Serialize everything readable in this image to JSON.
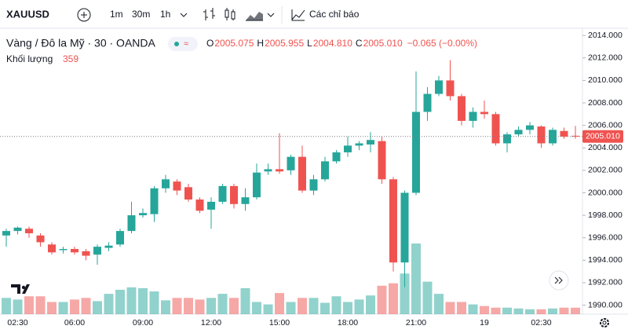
{
  "toolbar": {
    "symbol": "XAUUSD",
    "intervals": [
      "1m",
      "30m",
      "1h"
    ],
    "indicators": "Các chỉ báo"
  },
  "chart_data": {
    "type": "candlestick",
    "title": "Vàng / Đô la Mỹ · 30 · OANDA",
    "legend": [
      {
        "key": "O",
        "value": "2005.075"
      },
      {
        "key": "H",
        "value": "2005.955"
      },
      {
        "key": "L",
        "value": "2004.810"
      },
      {
        "key": "C",
        "value": "2005.010"
      }
    ],
    "change": "−0.065 (−0.00%)",
    "volume_label": "Khối lượng",
    "last_price_label": "2005.010",
    "up_color": "#26a69a",
    "down_color": "#ef5350",
    "categories": [
      null,
      "02:30",
      null,
      null,
      null,
      null,
      "06:00",
      null,
      null,
      null,
      null,
      null,
      "09:00",
      null,
      null,
      null,
      null,
      null,
      "12:00",
      null,
      null,
      null,
      null,
      null,
      "15:00",
      null,
      null,
      null,
      null,
      null,
      "18:00",
      null,
      null,
      null,
      null,
      null,
      "21:00",
      null,
      null,
      null,
      null,
      null,
      "19",
      null,
      null,
      null,
      null,
      "02:30",
      null,
      null,
      null
    ],
    "open": [
      1996.2,
      1996.6,
      1996.8,
      1996.2,
      1995.4,
      1994.9,
      1995.0,
      1994.8,
      1994.5,
      1995.1,
      1995.4,
      1996.6,
      1998.0,
      1998.1,
      2000.4,
      2001.0,
      2000.5,
      1999.4,
      1998.5,
      1999.2,
      2000.6,
      1999.0,
      1999.6,
      2001.9,
      2002.1,
      2002.0,
      2003.2,
      2000.2,
      2001.2,
      2002.8,
      2003.6,
      2004.2,
      2004.3,
      2004.6,
      2001.2,
      1993.8,
      2000.0,
      2007.2,
      2008.8,
      2010.0,
      2008.6,
      2006.4,
      2007.2,
      2007.0,
      2004.4,
      2005.2,
      2005.6,
      2005.9,
      2004.4,
      2005.5,
      2005.075
    ],
    "high": [
      1996.8,
      1997.0,
      1997.0,
      1996.4,
      1995.6,
      1995.2,
      1995.2,
      1995.0,
      1995.4,
      1995.6,
      1996.8,
      1999.2,
      1998.6,
      2000.6,
      2001.6,
      2001.2,
      2000.8,
      1999.6,
      1999.6,
      2000.8,
      2000.8,
      2000.4,
      2002.6,
      2002.6,
      2005.3,
      2003.4,
      2004.2,
      2001.6,
      2003.2,
      2003.8,
      2005.0,
      2004.6,
      2005.4,
      2005.0,
      2001.4,
      2000.2,
      2010.8,
      2009.4,
      2010.4,
      2011.8,
      2008.8,
      2007.6,
      2008.2,
      2007.2,
      2005.4,
      2005.9,
      2006.3,
      2006.0,
      2005.8,
      2005.8,
      2005.955
    ],
    "low": [
      1995.2,
      1996.3,
      1996.0,
      1995.2,
      1994.5,
      1994.6,
      1994.5,
      1994.0,
      1993.6,
      1994.8,
      1995.2,
      1996.4,
      1997.8,
      1997.4,
      2000.0,
      1999.8,
      1999.2,
      1998.2,
      1996.8,
      1999.0,
      1998.6,
      1998.4,
      1999.4,
      2001.6,
      2001.7,
      2001.6,
      2000.0,
      1999.8,
      2001.0,
      2002.6,
      2003.2,
      2003.8,
      2003.6,
      2000.8,
      1993.0,
      1991.6,
      1999.8,
      2006.4,
      2008.6,
      2008.2,
      2006.0,
      2005.8,
      2006.6,
      2004.2,
      2003.6,
      2005.0,
      2005.2,
      2004.0,
      2004.2,
      2004.8,
      2004.81
    ],
    "close": [
      1996.6,
      1996.9,
      1996.4,
      1995.6,
      1994.7,
      1995.0,
      1994.7,
      1994.4,
      1995.2,
      1995.3,
      1996.6,
      1998.0,
      1998.2,
      2000.4,
      2001.2,
      2000.2,
      1999.4,
      1998.4,
      1999.2,
      2000.6,
      1999.0,
      1999.6,
      2001.8,
      2002.1,
      2001.9,
      2003.2,
      2000.2,
      2001.2,
      2002.8,
      2003.6,
      2004.2,
      2004.4,
      2004.7,
      2001.2,
      1993.8,
      2000.0,
      2007.2,
      2008.8,
      2010.0,
      2008.6,
      2006.4,
      2007.2,
      2007.0,
      2004.4,
      2005.2,
      2005.6,
      2006.0,
      2004.4,
      2005.6,
      2005.0,
      2005.01
    ],
    "volume": [
      900,
      810,
      990,
      990,
      675,
      675,
      810,
      900,
      720,
      1125,
      1350,
      1485,
      1440,
      1260,
      765,
      900,
      900,
      810,
      900,
      1125,
      900,
      1440,
      675,
      540,
      1170,
      675,
      900,
      900,
      630,
      990,
      675,
      810,
      1035,
      1575,
      1710,
      2250,
      3915,
      1800,
      1125,
      675,
      675,
      540,
      450,
      360,
      360,
      315,
      270,
      270,
      315,
      360,
      359
    ],
    "ylim": [
      1989.2,
      2014.5
    ],
    "yticks": [
      {
        "value": 1990,
        "label": "1990.000"
      },
      {
        "value": 1992,
        "label": "1992.000"
      },
      {
        "value": 1994,
        "label": "1994.000"
      },
      {
        "value": 1996,
        "label": "1996.000"
      },
      {
        "value": 1998,
        "label": "1998.000"
      },
      {
        "value": 2000,
        "label": "2000.000"
      },
      {
        "value": 2002,
        "label": "2002.000"
      },
      {
        "value": 2004,
        "label": "2004.000"
      },
      {
        "value": 2006,
        "label": "2006.000"
      },
      {
        "value": 2008,
        "label": "2008.000"
      },
      {
        "value": 2010,
        "label": "2010.000"
      },
      {
        "value": 2012,
        "label": "2012.000"
      },
      {
        "value": 2014,
        "label": "2014.000"
      }
    ]
  }
}
